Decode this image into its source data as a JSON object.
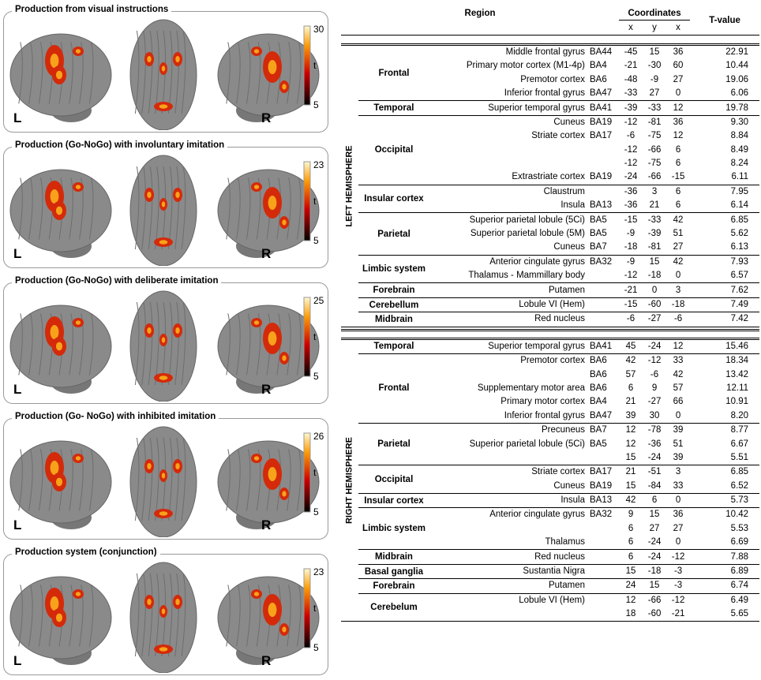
{
  "panels": [
    {
      "title": "Production from visual instructions",
      "tmax": "30",
      "tlabel": "t",
      "tmin": "5",
      "left": "L",
      "right": "R"
    },
    {
      "title": "Production (Go-NoGo) with involuntary imitation",
      "tmax": "23",
      "tlabel": "t",
      "tmin": "5",
      "left": "L",
      "right": "R"
    },
    {
      "title": "Production (Go-NoGo) with deliberate imitation",
      "tmax": "25",
      "tlabel": "t",
      "tmin": "5",
      "left": "L",
      "right": "R"
    },
    {
      "title": "Production (Go- NoGo) with inhibited imitation",
      "tmax": "26",
      "tlabel": "t",
      "tmin": "5",
      "left": "L",
      "right": "R"
    },
    {
      "title": "Production system (conjunction)",
      "tmax": "23",
      "tlabel": "t",
      "tmin": "5",
      "left": "L",
      "right": "R"
    }
  ],
  "table": {
    "header": {
      "region": "Region",
      "coordinates": "Coordinates",
      "c1": "x",
      "c2": "y",
      "c3": "x",
      "tvalue": "T-value"
    },
    "sections": [
      {
        "hemisphere": "LEFT HEMISPHERE",
        "groups": [
          {
            "region": "Frontal",
            "rows": [
              {
                "name": "Middle frontal gyrus",
                "ba": "BA44",
                "x": "-45",
                "y": "15",
                "z": "36",
                "t": "22.91"
              },
              {
                "name": "Primary motor cortex (M1-4p)",
                "ba": "BA4",
                "x": "-21",
                "y": "-30",
                "z": "60",
                "t": "10.44"
              },
              {
                "name": "Premotor cortex",
                "ba": "BA6",
                "x": "-48",
                "y": "-9",
                "z": "27",
                "t": "19.06"
              },
              {
                "name": "Inferior frontal gyrus",
                "ba": "BA47",
                "x": "-33",
                "y": "27",
                "z": "0",
                "t": "6.06"
              }
            ]
          },
          {
            "region": "Temporal",
            "rows": [
              {
                "name": "Superior temporal gyrus",
                "ba": "BA41",
                "x": "-39",
                "y": "-33",
                "z": "12",
                "t": "19.78"
              }
            ]
          },
          {
            "region": "Occipital",
            "rows": [
              {
                "name": "Cuneus",
                "ba": "BA19",
                "x": "-12",
                "y": "-81",
                "z": "36",
                "t": "9.30"
              },
              {
                "name": "Striate cortex",
                "ba": "BA17",
                "x": "-6",
                "y": "-75",
                "z": "12",
                "t": "8.84"
              },
              {
                "x": "-12",
                "y": "-66",
                "z": "6",
                "t": "8.49"
              },
              {
                "x": "-12",
                "y": "-75",
                "z": "6",
                "t": "8.24"
              },
              {
                "name": "Extrastriate cortex",
                "ba": "BA19",
                "x": "-24",
                "y": "-66",
                "z": "-15",
                "t": "6.11"
              }
            ]
          },
          {
            "region": "Insular cortex",
            "rows": [
              {
                "name": "Claustrum",
                "x": "-36",
                "y": "3",
                "z": "6",
                "t": "7.95"
              },
              {
                "name": "Insula",
                "ba": "BA13",
                "x": "-36",
                "y": "21",
                "z": "6",
                "t": "6.14"
              }
            ]
          },
          {
            "region": "Parietal",
            "rows": [
              {
                "name": "Superior parietal lobule (5Ci)",
                "ba": "BA5",
                "x": "-15",
                "y": "-33",
                "z": "42",
                "t": "6.85"
              },
              {
                "name": "Superior parietal lobule (5M)",
                "ba": "BA5",
                "x": "-9",
                "y": "-39",
                "z": "51",
                "t": "5.62"
              },
              {
                "name": "Cuneus",
                "ba": "BA7",
                "x": "-18",
                "y": "-81",
                "z": "27",
                "t": "6.13"
              }
            ]
          },
          {
            "region": "Limbic system",
            "rows": [
              {
                "name": "Anterior cingulate gyrus",
                "ba": "BA32",
                "x": "-9",
                "y": "15",
                "z": "42",
                "t": "7.93"
              },
              {
                "name": "Thalamus - Mammillary body",
                "x": "-12",
                "y": "-18",
                "z": "0",
                "t": "6.57"
              }
            ]
          },
          {
            "region": "Forebrain",
            "rows": [
              {
                "name": "Putamen",
                "x": "-21",
                "y": "0",
                "z": "3",
                "t": "7.62"
              }
            ]
          },
          {
            "region": "Cerebellum",
            "rows": [
              {
                "name": "Lobule VI (Hem)",
                "x": "-15",
                "y": "-60",
                "z": "-18",
                "t": "7.49"
              }
            ]
          },
          {
            "region": "Midbrain",
            "rows": [
              {
                "name": "Red nucleus",
                "x": "-6",
                "y": "-27",
                "z": "-6",
                "t": "7.42"
              }
            ]
          }
        ]
      },
      {
        "hemisphere": "RIGHT HEMISPHERE",
        "groups": [
          {
            "region": "Temporal",
            "rows": [
              {
                "name": "Superior temporal gyrus",
                "ba": "BA41",
                "x": "45",
                "y": "-24",
                "z": "12",
                "t": "15.46"
              }
            ]
          },
          {
            "region": "Frontal",
            "rows": [
              {
                "name": "Premotor cortex",
                "ba": "BA6",
                "x": "42",
                "y": "-12",
                "z": "33",
                "t": "18.34"
              },
              {
                "ba": "BA6",
                "x": "57",
                "y": "-6",
                "z": "42",
                "t": "13.42"
              },
              {
                "name": "Supplementary motor area",
                "ba": "BA6",
                "x": "6",
                "y": "9",
                "z": "57",
                "t": "12.11"
              },
              {
                "name": "Primary motor cortex",
                "ba": "BA4",
                "x": "21",
                "y": "-27",
                "z": "66",
                "t": "10.91"
              },
              {
                "name": "Inferior frontal gyrus",
                "ba": "BA47",
                "x": "39",
                "y": "30",
                "z": "0",
                "t": "8.20"
              }
            ]
          },
          {
            "region": "Parietal",
            "rows": [
              {
                "name": "Precuneus",
                "ba": "BA7",
                "x": "12",
                "y": "-78",
                "z": "39",
                "t": "8.77"
              },
              {
                "name": "Superior parietal lobule (5Ci)",
                "ba": "BA5",
                "x": "12",
                "y": "-36",
                "z": "51",
                "t": "6.67"
              },
              {
                "x": "15",
                "y": "-24",
                "z": "39",
                "t": "5.51"
              }
            ]
          },
          {
            "region": "Occipital",
            "rows": [
              {
                "name": "Striate cortex",
                "ba": "BA17",
                "x": "21",
                "y": "-51",
                "z": "3",
                "t": "6.85"
              },
              {
                "name": "Cuneus",
                "ba": "BA19",
                "x": "15",
                "y": "-84",
                "z": "33",
                "t": "6.52"
              }
            ]
          },
          {
            "region": "Insular cortex",
            "rows": [
              {
                "name": "Insula",
                "ba": "BA13",
                "x": "42",
                "y": "6",
                "z": "0",
                "t": "5.73"
              }
            ]
          },
          {
            "region": "Limbic system",
            "rows": [
              {
                "name": "Anterior cingulate  gyrus",
                "ba": "BA32",
                "x": "9",
                "y": "15",
                "z": "36",
                "t": "10.42"
              },
              {
                "x": "6",
                "y": "27",
                "z": "27",
                "t": "5.53"
              },
              {
                "name": "Thalamus",
                "x": "6",
                "y": "-24",
                "z": "0",
                "t": "6.69"
              }
            ]
          },
          {
            "region": "Midbrain",
            "rows": [
              {
                "name": "Red nucleus",
                "x": "6",
                "y": "-24",
                "z": "-12",
                "t": "7.88"
              }
            ]
          },
          {
            "region": "Basal ganglia",
            "rows": [
              {
                "name": "Sustantia Nigra",
                "x": "15",
                "y": "-18",
                "z": "-3",
                "t": "6.89"
              }
            ]
          },
          {
            "region": "Forebrain",
            "rows": [
              {
                "name": "Putamen",
                "x": "24",
                "y": "15",
                "z": "-3",
                "t": "6.74"
              }
            ]
          },
          {
            "region": "Cerebelum",
            "rows": [
              {
                "name": "Lobule VI (Hem)",
                "x": "12",
                "y": "-66",
                "z": "-12",
                "t": "6.49"
              },
              {
                "x": "18",
                "y": "-60",
                "z": "-21",
                "t": "5.65"
              }
            ]
          }
        ]
      }
    ]
  }
}
